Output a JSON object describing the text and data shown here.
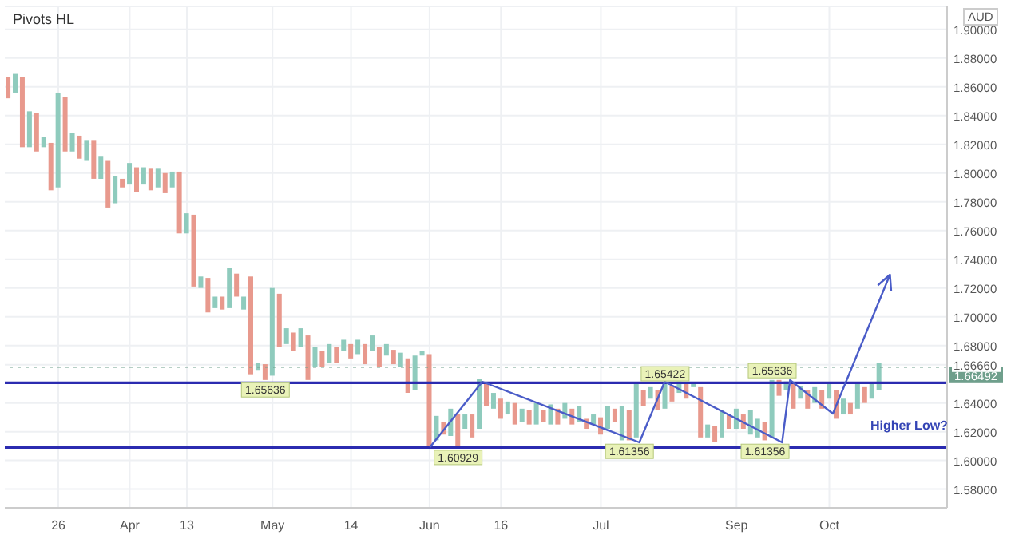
{
  "chart_data": {
    "type": "bar",
    "title": "Pivots HL",
    "categories": [
      null,
      null,
      null,
      null,
      null,
      null,
      null,
      "26",
      null,
      null,
      null,
      null,
      null,
      null,
      null,
      null,
      null,
      "Apr",
      null,
      null,
      null,
      null,
      null,
      null,
      null,
      "13",
      null,
      null,
      null,
      null,
      null,
      null,
      null,
      null,
      null,
      null,
      null,
      "May",
      null,
      null,
      null,
      null,
      null,
      null,
      null,
      null,
      null,
      null,
      "14",
      null,
      null,
      null,
      null,
      null,
      null,
      null,
      null,
      null,
      null,
      "Jun",
      null,
      null,
      null,
      null,
      null,
      null,
      null,
      null,
      null,
      "16",
      null,
      null,
      null,
      null,
      null,
      null,
      null,
      null,
      null,
      null,
      null,
      null,
      null,
      "Jul",
      null,
      null,
      null,
      null,
      null,
      null,
      null,
      null,
      null,
      null,
      null,
      null,
      null,
      null,
      null,
      null,
      null,
      null,
      "Sep",
      null,
      null,
      null,
      null,
      null,
      null,
      null,
      null,
      null,
      null,
      null,
      null,
      "Oct",
      null,
      null,
      null,
      null,
      null,
      null,
      null,
      null,
      null,
      null,
      null,
      null,
      null,
      null,
      null,
      null
    ],
    "base": [
      1.852,
      1.856,
      1.818,
      1.818,
      1.815,
      1.818,
      1.788,
      1.79,
      1.815,
      1.815,
      1.81,
      1.809,
      1.796,
      1.796,
      1.776,
      1.779,
      1.79,
      1.792,
      1.787,
      1.792,
      1.788,
      1.79,
      1.786,
      1.79,
      1.758,
      1.758,
      1.721,
      1.72,
      1.703,
      1.706,
      1.705,
      1.706,
      1.714,
      1.705,
      1.66,
      1.663,
      1.656,
      1.659,
      1.679,
      1.681,
      1.676,
      1.679,
      1.656,
      1.665,
      1.665,
      1.668,
      1.668,
      1.676,
      1.671,
      1.674,
      1.667,
      1.676,
      1.665,
      1.673,
      1.667,
      1.665,
      1.647,
      1.649,
      1.673,
      1.609,
      1.614,
      1.618,
      1.617,
      1.609,
      1.622,
      1.616,
      1.622,
      1.638,
      1.636,
      1.629,
      1.632,
      1.625,
      1.627,
      1.625,
      1.625,
      1.627,
      1.625,
      1.625,
      1.629,
      1.625,
      1.627,
      1.622,
      1.625,
      1.618,
      1.622,
      1.627,
      1.614,
      1.614,
      1.616,
      1.638,
      1.643,
      1.635,
      1.636,
      1.641,
      1.647,
      1.643,
      1.651,
      1.616,
      1.616,
      1.613,
      1.616,
      1.622,
      1.622,
      1.622,
      1.618,
      1.616,
      1.614,
      1.616,
      1.645,
      1.649,
      1.636,
      1.643,
      1.636,
      1.64,
      1.636,
      1.643,
      1.629,
      1.632,
      1.632,
      1.636,
      1.64,
      1.643,
      1.649,
      null,
      null,
      null,
      null,
      null,
      null,
      null,
      null,
      null
    ],
    "values": [
      0.015,
      0.013,
      0.049,
      0.025,
      0.027,
      0.007,
      0.033,
      0.066,
      0.038,
      0.013,
      0.016,
      0.014,
      0.027,
      0.016,
      0.033,
      0.019,
      0.006,
      0.015,
      0.017,
      0.012,
      0.015,
      0.013,
      0.014,
      0.011,
      0.043,
      0.014,
      0.05,
      0.008,
      0.024,
      0.008,
      0.009,
      0.028,
      0.016,
      0.009,
      0.068,
      0.005,
      0.011,
      0.061,
      0.037,
      0.011,
      0.013,
      0.013,
      0.031,
      0.014,
      0.011,
      0.013,
      0.011,
      0.008,
      0.01,
      0.01,
      0.014,
      0.011,
      0.014,
      0.008,
      0.01,
      0.01,
      0.024,
      0.024,
      0.003,
      0.065,
      0.017,
      0.009,
      0.019,
      0.023,
      0.01,
      0.016,
      0.035,
      0.016,
      0.011,
      0.014,
      0.009,
      0.015,
      0.009,
      0.01,
      0.015,
      0.008,
      0.014,
      0.011,
      0.011,
      0.011,
      0.011,
      0.007,
      0.007,
      0.012,
      0.016,
      0.009,
      0.024,
      0.021,
      0.038,
      0.011,
      0.008,
      0.014,
      0.018,
      0.011,
      0.008,
      0.011,
      0.003,
      0.035,
      0.009,
      0.011,
      0.019,
      0.01,
      0.014,
      0.01,
      0.017,
      0.013,
      0.013,
      0.04,
      0.011,
      0.006,
      0.018,
      0.009,
      0.013,
      0.011,
      0.013,
      0.011,
      0.02,
      0.011,
      0.008,
      0.018,
      0.011,
      0.011,
      0.019,
      null,
      null,
      null,
      null,
      null,
      null,
      null,
      null,
      null
    ],
    "colors": [
      "#e8998d",
      "#8fcbbd",
      "#e8998d",
      "#8fcbbd",
      "#e8998d",
      "#8fcbbd",
      "#e8998d",
      "#8fcbbd",
      "#e8998d",
      "#8fcbbd",
      "#e8998d",
      "#8fcbbd",
      "#e8998d",
      "#8fcbbd",
      "#e8998d",
      "#8fcbbd",
      "#e8998d",
      "#8fcbbd",
      "#e8998d",
      "#8fcbbd",
      "#e8998d",
      "#8fcbbd",
      "#e8998d",
      "#8fcbbd",
      "#e8998d",
      "#8fcbbd",
      "#e8998d",
      "#8fcbbd",
      "#e8998d",
      "#8fcbbd",
      "#e8998d",
      "#8fcbbd",
      "#e8998d",
      "#8fcbbd",
      "#e8998d",
      "#8fcbbd",
      "#e8998d",
      "#8fcbbd",
      "#e8998d",
      "#8fcbbd",
      "#e8998d",
      "#8fcbbd",
      "#e8998d",
      "#8fcbbd",
      "#e8998d",
      "#8fcbbd",
      "#e8998d",
      "#8fcbbd",
      "#e8998d",
      "#8fcbbd",
      "#e8998d",
      "#8fcbbd",
      "#e8998d",
      "#8fcbbd",
      "#e8998d",
      "#8fcbbd",
      "#e8998d",
      "#8fcbbd",
      "#8fcbbd",
      "#e8998d",
      "#8fcbbd",
      "#e8998d",
      "#8fcbbd",
      "#e8998d",
      "#8fcbbd",
      "#e8998d",
      "#8fcbbd",
      "#e8998d",
      "#8fcbbd",
      "#e8998d",
      "#8fcbbd",
      "#e8998d",
      "#8fcbbd",
      "#e8998d",
      "#8fcbbd",
      "#e8998d",
      "#8fcbbd",
      "#e8998d",
      "#8fcbbd",
      "#e8998d",
      "#8fcbbd",
      "#e8998d",
      "#8fcbbd",
      "#e8998d",
      "#8fcbbd",
      "#e8998d",
      "#8fcbbd",
      "#e8998d",
      "#8fcbbd",
      "#e8998d",
      "#8fcbbd",
      "#e8998d",
      "#8fcbbd",
      "#e8998d",
      "#8fcbbd",
      "#e8998d",
      "#8fcbbd",
      "#e8998d",
      "#8fcbbd",
      "#e8998d",
      "#8fcbbd",
      "#e8998d",
      "#8fcbbd",
      "#e8998d",
      "#8fcbbd",
      "#8fcbbd",
      "#e8998d",
      "#8fcbbd",
      "#e8998d",
      "#8fcbbd",
      "#e8998d",
      "#8fcbbd",
      "#e8998d",
      "#8fcbbd",
      "#e8998d",
      "#8fcbbd",
      "#e8998d",
      "#8fcbbd",
      "#e8998d",
      "#8fcbbd",
      "#e8998d",
      "#8fcbbd",
      "#8fcbbd",
      null,
      null,
      null,
      null,
      null,
      null,
      null,
      null,
      null
    ],
    "ylim": [
      1.567,
      1.916
    ],
    "yticks": [
      {
        "value": 1.58,
        "label": "1.58000"
      },
      {
        "value": 1.6,
        "label": "1.60000"
      },
      {
        "value": 1.62,
        "label": "1.62000"
      },
      {
        "value": 1.64,
        "label": "1.64000"
      },
      {
        "value": 1.6666,
        "label": "1.66660"
      },
      {
        "value": 1.68,
        "label": "1.68000"
      },
      {
        "value": 1.7,
        "label": "1.70000"
      },
      {
        "value": 1.72,
        "label": "1.72000"
      },
      {
        "value": 1.74,
        "label": "1.74000"
      },
      {
        "value": 1.76,
        "label": "1.76000"
      },
      {
        "value": 1.78,
        "label": "1.78000"
      },
      {
        "value": 1.8,
        "label": "1.80000"
      },
      {
        "value": 1.82,
        "label": "1.82000"
      },
      {
        "value": 1.84,
        "label": "1.84000"
      },
      {
        "value": 1.86,
        "label": "1.86000"
      },
      {
        "value": 1.88,
        "label": "1.88000"
      },
      {
        "value": 1.9,
        "label": "1.90000"
      }
    ],
    "grid": true,
    "ref_lines": [
      {
        "axis": "y",
        "value": 1.654,
        "color": "#2b2bb0"
      },
      {
        "axis": "y",
        "value": 1.609,
        "color": "#2b2bb0"
      },
      {
        "axis": "y",
        "value": 1.66492,
        "label": "1.66492",
        "color": "#6f9f8c",
        "line_style": "dotted"
      }
    ],
    "annotations": [
      "AUD",
      "Higher Low?",
      {
        "text": "1.65636",
        "y": 1.65636
      },
      {
        "text": "1.60929",
        "y": 1.60929
      },
      {
        "text": "1.61356",
        "y": 1.61356
      },
      {
        "text": "1.65422",
        "y": 1.65422
      },
      {
        "text": "1.61356",
        "y": 1.61356
      },
      {
        "text": "1.65636",
        "y": 1.65636
      }
    ]
  }
}
